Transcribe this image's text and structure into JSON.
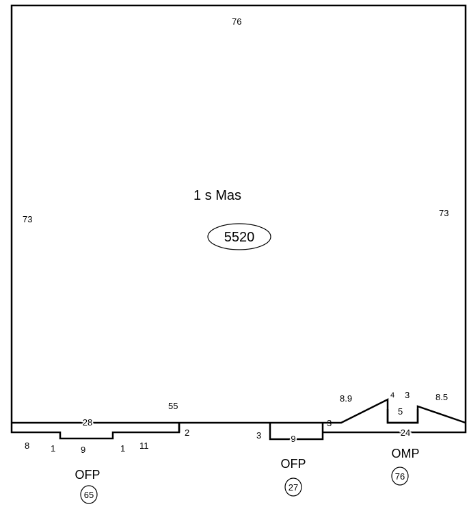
{
  "main_area": {
    "label": "1 s Mas",
    "area": "5520",
    "dim_top": "76",
    "dim_left": "73",
    "dim_right": "73",
    "dim_bottom_right": "55"
  },
  "porch_left": {
    "label": "OFP",
    "area": "65",
    "dim_top": "28",
    "dim_left": "8",
    "dim_step_left": "1",
    "dim_notch": "9",
    "dim_step_right": "1",
    "dim_right": "11",
    "dim_side": "2"
  },
  "porch_middle": {
    "label": "OFP",
    "area": "27",
    "dim_left": "3",
    "dim_bottom": "9",
    "dim_right": "3"
  },
  "porch_right": {
    "label": "OMP",
    "area": "76",
    "dim_diag_left": "8.9",
    "dim_notch_left": "4",
    "dim_notch_right": "3",
    "dim_notch_depth": "5",
    "dim_diag_right": "8.5",
    "dim_bottom": "24"
  }
}
